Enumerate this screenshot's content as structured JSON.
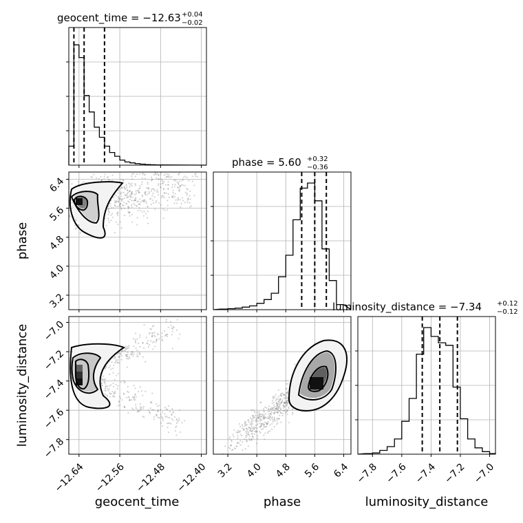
{
  "chart_data": {
    "type": "corner",
    "parameters": [
      "geocent_time",
      "phase",
      "luminosity_distance"
    ],
    "axis_labels": {
      "geocent_time": "geocent_time",
      "phase": "phase",
      "luminosity_distance": "luminosity_distance"
    },
    "ticks": {
      "geocent_time": [
        "−12.64",
        "−12.56",
        "−12.48",
        "−12.40"
      ],
      "phase": [
        "3.2",
        "4.0",
        "4.8",
        "5.6",
        "6.4"
      ],
      "luminosity_distance": [
        "−7.8",
        "−7.6",
        "−7.4",
        "−7.2",
        "−7.0"
      ]
    },
    "ranges": {
      "geocent_time": [
        -12.66,
        -12.39
      ],
      "phase": [
        2.8,
        6.6
      ],
      "luminosity_distance": [
        -7.9,
        -6.96
      ]
    },
    "titles": {
      "geocent_time": {
        "main": "geocent_time = −12.63",
        "upper": "+0.04",
        "lower": "−0.02"
      },
      "phase": {
        "main": "phase = 5.60",
        "upper": "+0.32",
        "lower": "−0.36"
      },
      "luminosity_distance": {
        "main": "luminosity_distance = −7.34",
        "upper": "+0.12",
        "lower": "−0.12"
      }
    },
    "quantiles": {
      "geocent_time": [
        -12.65,
        -12.63,
        -12.59
      ],
      "phase": [
        5.24,
        5.6,
        5.92
      ],
      "luminosity_distance": [
        -7.46,
        -7.34,
        -7.22
      ]
    },
    "histograms": {
      "geocent_time": {
        "bin_width": 0.01,
        "bins_start": -12.66,
        "counts": [
          0.15,
          0.95,
          0.85,
          0.55,
          0.42,
          0.3,
          0.22,
          0.15,
          0.1,
          0.07,
          0.04,
          0.025,
          0.018,
          0.012,
          0.008,
          0.005,
          0.003,
          0.002
        ]
      },
      "phase": {
        "bin_width": 0.2,
        "bins_start": 3.0,
        "counts": [
          0.005,
          0.008,
          0.012,
          0.02,
          0.03,
          0.05,
          0.08,
          0.13,
          0.26,
          0.43,
          0.71,
          0.96,
          1.0,
          0.86,
          0.48,
          0.23,
          0.04
        ]
      },
      "luminosity_distance": {
        "bin_width": 0.05,
        "bins_start": -7.85,
        "counts": [
          0.005,
          0.01,
          0.03,
          0.06,
          0.12,
          0.26,
          0.44,
          0.79,
          1.0,
          0.93,
          0.88,
          0.86,
          0.53,
          0.28,
          0.12,
          0.05,
          0.02,
          0.005
        ]
      }
    },
    "grid": true,
    "colors": {
      "line": "#000000",
      "grid": "#b0b0b0",
      "points": "#7f7f7f",
      "fill_light": "#dcdcdc",
      "fill_mid": "#a0a0a0",
      "fill_dark": "#404040"
    }
  }
}
